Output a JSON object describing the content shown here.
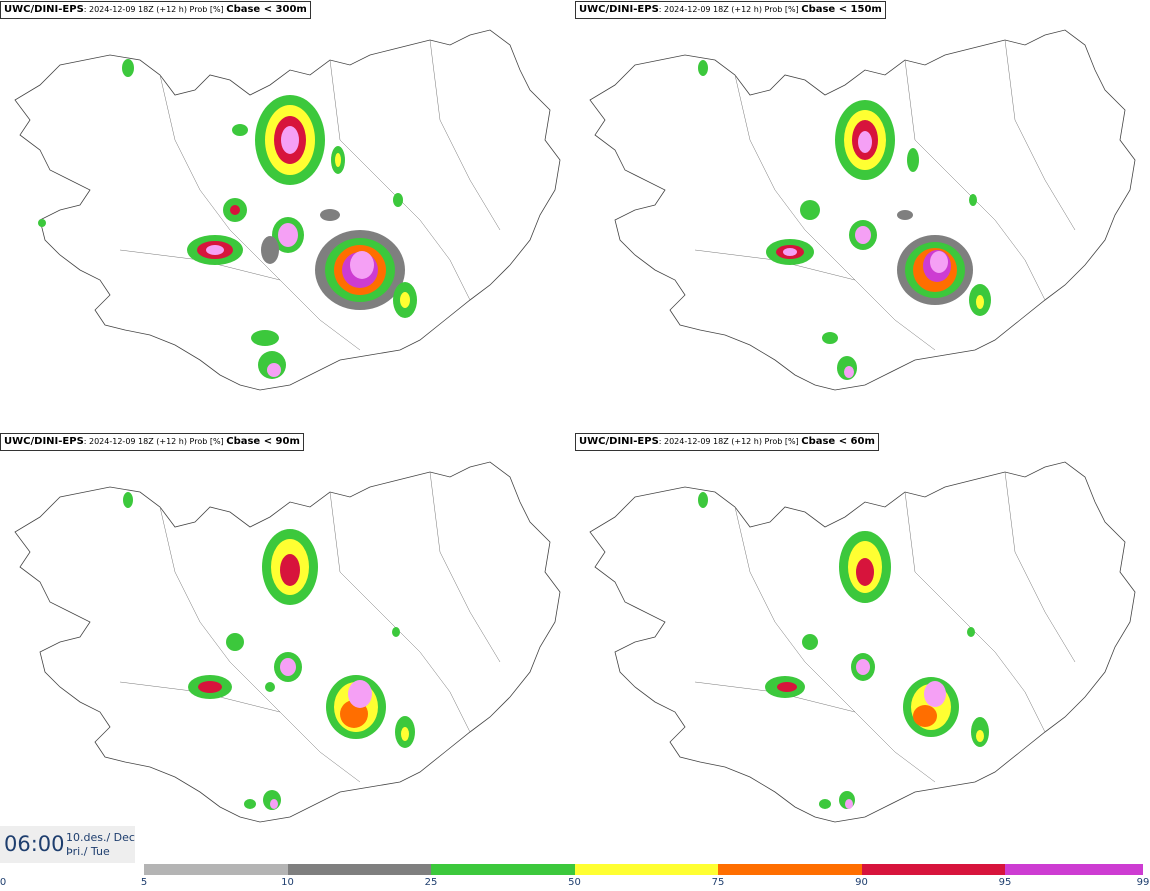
{
  "panels": [
    {
      "source": "UWC/DINI-EPS",
      "meta": ": 2024-12-09 18Z (+12 h) Prob [%] ",
      "variable": "Cbase < 300m"
    },
    {
      "source": "UWC/DINI-EPS",
      "meta": ": 2024-12-09 18Z (+12 h) Prob [%] ",
      "variable": "Cbase < 150m"
    },
    {
      "source": "UWC/DINI-EPS",
      "meta": ": 2024-12-09 18Z (+12 h) Prob [%] ",
      "variable": "Cbase < 90m"
    },
    {
      "source": "UWC/DINI-EPS",
      "meta": ": 2024-12-09 18Z (+12 h) Prob [%] ",
      "variable": "Cbase < 60m"
    }
  ],
  "time": {
    "value": "06:00",
    "date_line1": "10.des./ Dec",
    "date_line2": "Þri./ Tue"
  },
  "legend": {
    "ticks": [
      "0",
      "5",
      "10",
      "25",
      "50",
      "75",
      "90",
      "95",
      "99"
    ],
    "colors": [
      "#b4b4b4",
      "#7f7f7f",
      "#3cc83c",
      "#ffff32",
      "#ff6e00",
      "#d7143c",
      "#cd3cd2",
      "#f5a0f5"
    ]
  }
}
